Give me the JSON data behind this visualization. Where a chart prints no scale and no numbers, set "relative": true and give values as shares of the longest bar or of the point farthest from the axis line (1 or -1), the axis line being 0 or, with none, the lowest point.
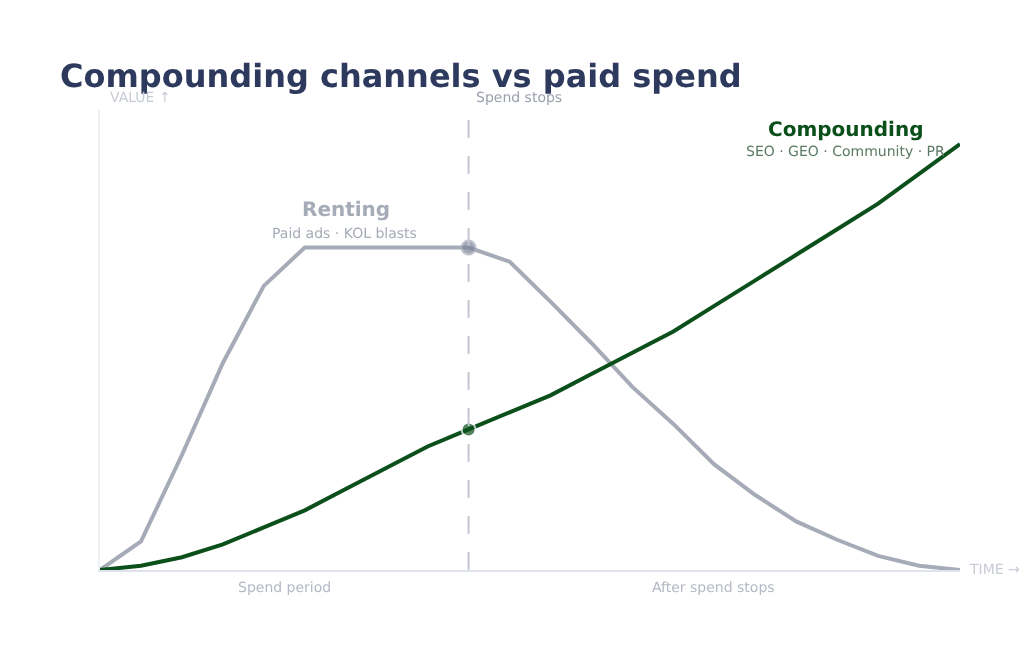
{
  "chart_data": {
    "type": "line",
    "title": "Compounding channels vs paid spend",
    "xlabel": "TIME →",
    "ylabel": "VALUE ↑",
    "relative": true,
    "grid": false,
    "legend": false,
    "marker": "none",
    "line_style": "solid",
    "categories": [
      null,
      null,
      null,
      null,
      null,
      null,
      null,
      null,
      null,
      null,
      null,
      null,
      null,
      null,
      null,
      null,
      null,
      null,
      null,
      null,
      null,
      null
    ],
    "series": [
      {
        "name": "Renting",
        "color": "#a6abb8",
        "values": [
          0,
          0.067,
          0.27,
          0.486,
          0.667,
          0.757,
          0.757,
          0.757,
          0.757,
          0.757,
          0.724,
          0.63,
          0.533,
          0.43,
          0.343,
          0.248,
          0.176,
          0.114,
          0.071,
          0.033,
          0.01,
          0
        ]
      },
      {
        "name": "Compounding",
        "color": "#0b4f1a",
        "values": [
          0,
          0.01,
          0.03,
          0.06,
          0.1,
          0.14,
          0.19,
          0.24,
          0.29,
          0.33,
          0.37,
          0.41,
          0.46,
          0.51,
          0.56,
          0.62,
          0.68,
          0.74,
          0.8,
          0.86,
          0.93,
          1
        ]
      }
    ],
    "annotations": [
      "Paid ads · KOL blasts",
      "SEO · GEO · Community · PR",
      "Spend period",
      "After spend stops",
      "Spend stops"
    ]
  }
}
